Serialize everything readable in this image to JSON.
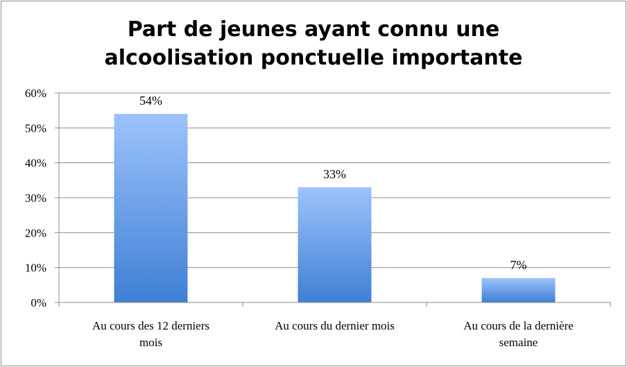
{
  "chart_data": {
    "type": "bar",
    "title_lines": [
      "Part de jeunes ayant connu une",
      "alcoolisation ponctuelle importante"
    ],
    "categories": [
      [
        "Au cours des 12 derniers",
        "mois"
      ],
      [
        "Au cours du dernier mois"
      ],
      [
        "Au cours de la dernière",
        "semaine"
      ]
    ],
    "values": [
      54,
      33,
      7
    ],
    "data_labels": [
      "54%",
      "33%",
      "7%"
    ],
    "ylim": [
      0,
      60
    ],
    "yticks": [
      0,
      10,
      20,
      30,
      40,
      50,
      60
    ],
    "ytick_labels": [
      "0%",
      "10%",
      "20%",
      "30%",
      "40%",
      "50%",
      "60%"
    ],
    "xlabel": "",
    "ylabel": "",
    "grid": true,
    "legend": "none",
    "colors": {
      "bar_top": "#9dc3fb",
      "bar_bottom": "#3f7fd4",
      "grid": "#8c8c8c"
    }
  }
}
